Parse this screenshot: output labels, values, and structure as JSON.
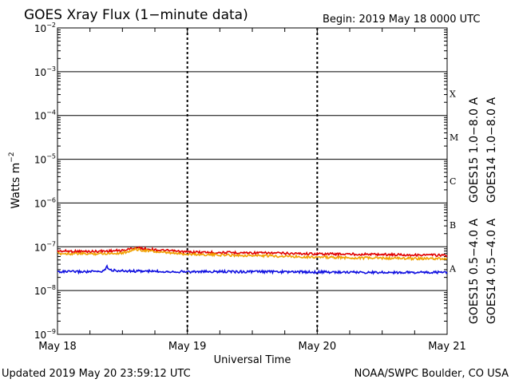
{
  "chart_data": {
    "type": "line",
    "title": "GOES Xray Flux (1−minute data)",
    "begin_label": "Begin:  2019 May 18 0000 UTC",
    "xlabel": "Universal Time",
    "ylabel_text": "Watts m",
    "ylabel_sup": "−2",
    "x_ticks": [
      "May 18",
      "May 19",
      "May 20",
      "May 21"
    ],
    "x_range_days": [
      0,
      3
    ],
    "yscale": "log",
    "ylim_exponents": [
      -9,
      -2
    ],
    "y_tick_base": "10",
    "y_tick_exponents": [
      "−2",
      "−3",
      "−4",
      "−5",
      "−6",
      "−7",
      "−8",
      "−9"
    ],
    "flare_classes": [
      {
        "label": "X",
        "exponent": -4
      },
      {
        "label": "M",
        "exponent": -5
      },
      {
        "label": "C",
        "exponent": -6
      },
      {
        "label": "B",
        "exponent": -7
      },
      {
        "label": "A",
        "exponent": -8
      }
    ],
    "grid": true,
    "legend_right": [
      {
        "label": "GOES15 1.0−8.0 A",
        "color": "#e00000"
      },
      {
        "label": "GOES14 1.0−8.0 A",
        "color": "#f0a000"
      }
    ],
    "legend_left": [
      {
        "label": "GOES15 0.5−4.0 A",
        "color": "#1010e0"
      },
      {
        "label": "GOES14 0.5−4.0 A",
        "color": "#8000c0"
      }
    ],
    "series": [
      {
        "name": "GOES15 1.0−8.0 A",
        "color": "#e00000",
        "x": [
          0,
          0.25,
          0.5,
          0.6,
          0.8,
          1.0,
          1.25,
          1.5,
          1.75,
          2.0,
          2.25,
          2.5,
          2.75,
          3.0
        ],
        "y": [
          8e-08,
          7.8e-08,
          8.2e-08,
          9.5e-08,
          8.3e-08,
          7.6e-08,
          7.4e-08,
          7.3e-08,
          7.1e-08,
          6.9e-08,
          6.8e-08,
          6.7e-08,
          6.5e-08,
          6.4e-08
        ]
      },
      {
        "name": "GOES14 1.0−8.0 A",
        "color": "#f0a000",
        "x": [
          0,
          0.25,
          0.5,
          0.6,
          0.8,
          1.0,
          1.25,
          1.5,
          1.75,
          2.0,
          2.25,
          2.5,
          2.75,
          3.0
        ],
        "y": [
          7e-08,
          6.9e-08,
          7.2e-08,
          8.8e-08,
          7.4e-08,
          6.8e-08,
          6.5e-08,
          6.3e-08,
          6.1e-08,
          5.8e-08,
          5.6e-08,
          5.5e-08,
          5.4e-08,
          5.3e-08
        ]
      },
      {
        "name": "GOES15 0.5−4.0 A",
        "color": "#1010e0",
        "x": [
          0,
          0.25,
          0.35,
          0.38,
          0.42,
          0.5,
          0.75,
          1.0,
          1.5,
          2.0,
          2.5,
          3.0
        ],
        "y": [
          2.7e-08,
          2.7e-08,
          2.75e-08,
          3.5e-08,
          2.9e-08,
          2.8e-08,
          2.75e-08,
          2.7e-08,
          2.7e-08,
          2.65e-08,
          2.6e-08,
          2.6e-08
        ]
      }
    ]
  },
  "footer": {
    "updated": "Updated 2019 May 20 23:59:12 UTC",
    "credit": "NOAA/SWPC Boulder, CO USA"
  }
}
